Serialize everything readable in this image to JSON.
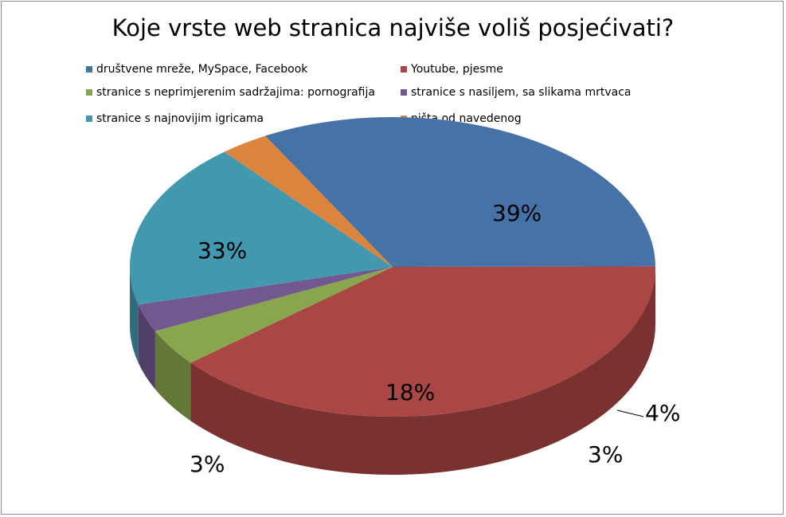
{
  "chart_data": {
    "type": "pie",
    "title": "Koje vrste web stranica najviše voliš posjećivati?",
    "legend_position": "top",
    "slices": [
      {
        "name": "društvene mreže, MySpace, Facebook",
        "value": 33,
        "label": "33%",
        "color": "#4572A7"
      },
      {
        "name": "Youtube, pjesme",
        "value": 39,
        "label": "39%",
        "color": "#AA4643"
      },
      {
        "name": "stranice s neprimjerenim sadržajima: pornografija",
        "value": 4,
        "label": "4%",
        "color": "#89A54E"
      },
      {
        "name": "stranice s nasiljem, sa slikama mrtvaca",
        "value": 3,
        "label": "3%",
        "color": "#71588F"
      },
      {
        "name": "stranice s najnovijim igricama",
        "value": 18,
        "label": "18%",
        "color": "#4198AF"
      },
      {
        "name": "ništa od navedenog",
        "value": 3,
        "label": "3%",
        "color": "#DB843D"
      }
    ]
  }
}
